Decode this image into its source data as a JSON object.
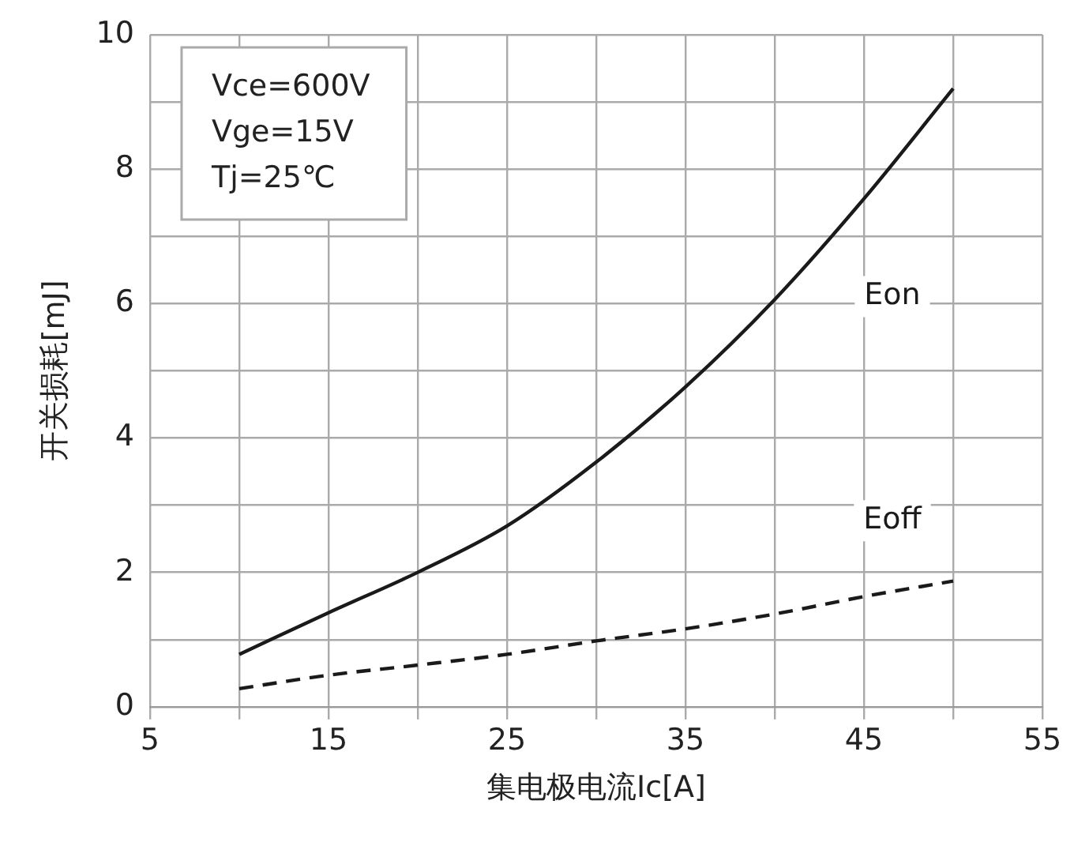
{
  "chart_data": {
    "type": "line",
    "xlabel": "集电极电流Ic[A]",
    "ylabel": "开关损耗[mJ]",
    "x": [
      10,
      15,
      20,
      25,
      30,
      35,
      40,
      45,
      50
    ],
    "series": [
      {
        "name": "Eon",
        "color": "#1a1a1a",
        "line_style": "solid",
        "values": [
          0.78,
          1.4,
          2.0,
          2.69,
          3.64,
          4.76,
          6.06,
          7.56,
          9.2
        ]
      },
      {
        "name": "Eoff",
        "color": "#1a1a1a",
        "line_style": "dashed",
        "values": [
          0.27,
          0.47,
          0.62,
          0.78,
          0.98,
          1.16,
          1.38,
          1.64,
          1.87
        ]
      }
    ],
    "xlim": [
      5,
      55
    ],
    "xticks": [
      5,
      {
        "value": 10,
        "label": null
      },
      15,
      {
        "value": 20,
        "label": null
      },
      25,
      {
        "value": 30,
        "label": null
      },
      35,
      {
        "value": 40,
        "label": null
      },
      45,
      {
        "value": 50,
        "label": null
      },
      55
    ],
    "ylim": [
      0,
      10
    ],
    "yticks": [
      0,
      {
        "value": 1,
        "label": null
      },
      2,
      {
        "value": 3,
        "label": null
      },
      4,
      {
        "value": 5,
        "label": null
      },
      6,
      {
        "value": 7,
        "label": null
      },
      8,
      {
        "value": 9,
        "label": null
      },
      10
    ],
    "grid": true,
    "legend": false,
    "marker": "none",
    "annotations": [
      "Vce=600V",
      "Vge=15V",
      "Tj=25℃"
    ]
  }
}
